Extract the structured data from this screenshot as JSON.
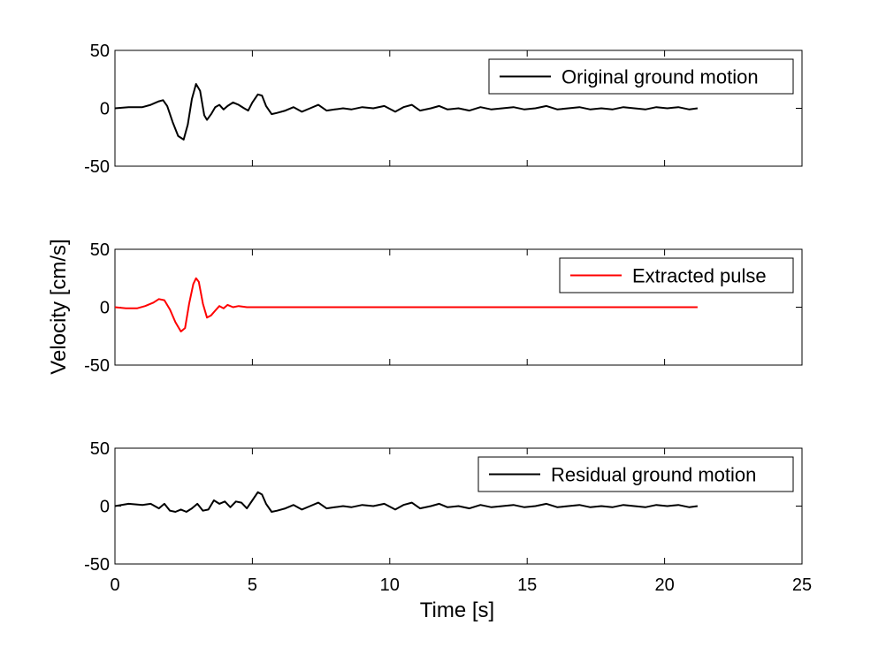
{
  "chart_data": {
    "type": "line",
    "xlabel": "Time [s]",
    "ylabel": "Velocity [cm/s]",
    "xlim": [
      0,
      25
    ],
    "xticks": [
      "0",
      "5",
      "10",
      "15",
      "20",
      "25"
    ],
    "grid": false,
    "panels": [
      {
        "ylim": [
          -50,
          50
        ],
        "yticks": [
          "-50",
          "0",
          "50"
        ],
        "legend_position": "top-right",
        "series": [
          {
            "name": "Original ground motion",
            "color": "#000000",
            "x": [
              0,
              0.5,
              1.0,
              1.3,
              1.6,
              1.75,
              1.9,
              2.1,
              2.3,
              2.5,
              2.65,
              2.8,
              2.95,
              3.1,
              3.25,
              3.35,
              3.5,
              3.65,
              3.8,
              3.95,
              4.1,
              4.3,
              4.5,
              4.7,
              4.85,
              5.0,
              5.2,
              5.35,
              5.5,
              5.7,
              5.9,
              6.2,
              6.5,
              6.8,
              7.1,
              7.4,
              7.7,
              8.0,
              8.3,
              8.6,
              9.0,
              9.4,
              9.8,
              10.2,
              10.5,
              10.8,
              11.1,
              11.5,
              11.8,
              12.1,
              12.5,
              12.9,
              13.3,
              13.7,
              14.1,
              14.5,
              14.9,
              15.3,
              15.7,
              16.1,
              16.5,
              16.9,
              17.3,
              17.7,
              18.1,
              18.5,
              18.9,
              19.3,
              19.7,
              20.1,
              20.5,
              20.9,
              21.2
            ],
            "y": [
              0,
              1,
              1,
              3,
              6,
              7,
              2,
              -12,
              -24,
              -27,
              -14,
              8,
              21,
              15,
              -6,
              -10,
              -5,
              1,
              3,
              -1,
              2,
              5,
              3,
              0,
              -2,
              5,
              12,
              11,
              2,
              -5,
              -4,
              -2,
              1,
              -3,
              0,
              3,
              -2,
              -1,
              0,
              -1,
              1,
              0,
              2,
              -3,
              1,
              3,
              -2,
              0,
              2,
              -1,
              0,
              -2,
              1,
              -1,
              0,
              1,
              -1,
              0,
              2,
              -1,
              0,
              1,
              -1,
              0,
              -1,
              1,
              0,
              -1,
              1,
              0,
              1,
              -1,
              0
            ]
          }
        ]
      },
      {
        "ylim": [
          -50,
          50
        ],
        "yticks": [
          "-50",
          "0",
          "50"
        ],
        "legend_position": "top-right",
        "series": [
          {
            "name": "Extracted pulse",
            "color": "#ff0000",
            "x": [
              0,
              0.4,
              0.8,
              1.1,
              1.4,
              1.6,
              1.8,
              2.0,
              2.2,
              2.4,
              2.55,
              2.7,
              2.85,
              2.95,
              3.05,
              3.2,
              3.35,
              3.5,
              3.65,
              3.8,
              3.95,
              4.1,
              4.3,
              4.5,
              4.8,
              5.2,
              5.6,
              6.0,
              8.0,
              12.0,
              16.0,
              21.2
            ],
            "y": [
              0,
              -1,
              -1,
              1,
              4,
              7,
              6,
              -2,
              -13,
              -21,
              -18,
              3,
              20,
              25,
              22,
              3,
              -9,
              -7,
              -3,
              1,
              -1,
              2,
              0,
              1,
              0,
              0,
              0,
              0,
              0,
              0,
              0,
              0
            ]
          }
        ]
      },
      {
        "ylim": [
          -50,
          50
        ],
        "yticks": [
          "-50",
          "0",
          "50"
        ],
        "legend_position": "top-right",
        "series": [
          {
            "name": "Residual ground motion",
            "color": "#000000",
            "x": [
              0,
              0.5,
              1.0,
              1.3,
              1.6,
              1.8,
              2.0,
              2.2,
              2.4,
              2.6,
              2.8,
              3.0,
              3.2,
              3.4,
              3.6,
              3.8,
              4.0,
              4.2,
              4.4,
              4.6,
              4.8,
              5.0,
              5.2,
              5.35,
              5.5,
              5.7,
              5.9,
              6.2,
              6.5,
              6.8,
              7.1,
              7.4,
              7.7,
              8.0,
              8.3,
              8.6,
              9.0,
              9.4,
              9.8,
              10.2,
              10.5,
              10.8,
              11.1,
              11.5,
              11.8,
              12.1,
              12.5,
              12.9,
              13.3,
              13.7,
              14.1,
              14.5,
              14.9,
              15.3,
              15.7,
              16.1,
              16.5,
              16.9,
              17.3,
              17.7,
              18.1,
              18.5,
              18.9,
              19.3,
              19.7,
              20.1,
              20.5,
              20.9,
              21.2
            ],
            "y": [
              0,
              2,
              1,
              2,
              -2,
              2,
              -4,
              -5,
              -3,
              -5,
              -2,
              2,
              -4,
              -3,
              5,
              2,
              4,
              -1,
              4,
              3,
              -2,
              5,
              12,
              10,
              2,
              -5,
              -4,
              -2,
              1,
              -3,
              0,
              3,
              -2,
              -1,
              0,
              -1,
              1,
              0,
              2,
              -3,
              1,
              3,
              -2,
              0,
              2,
              -1,
              0,
              -2,
              1,
              -1,
              0,
              1,
              -1,
              0,
              2,
              -1,
              0,
              1,
              -1,
              0,
              -1,
              1,
              0,
              -1,
              1,
              0,
              1,
              -1,
              0
            ]
          }
        ]
      }
    ]
  }
}
